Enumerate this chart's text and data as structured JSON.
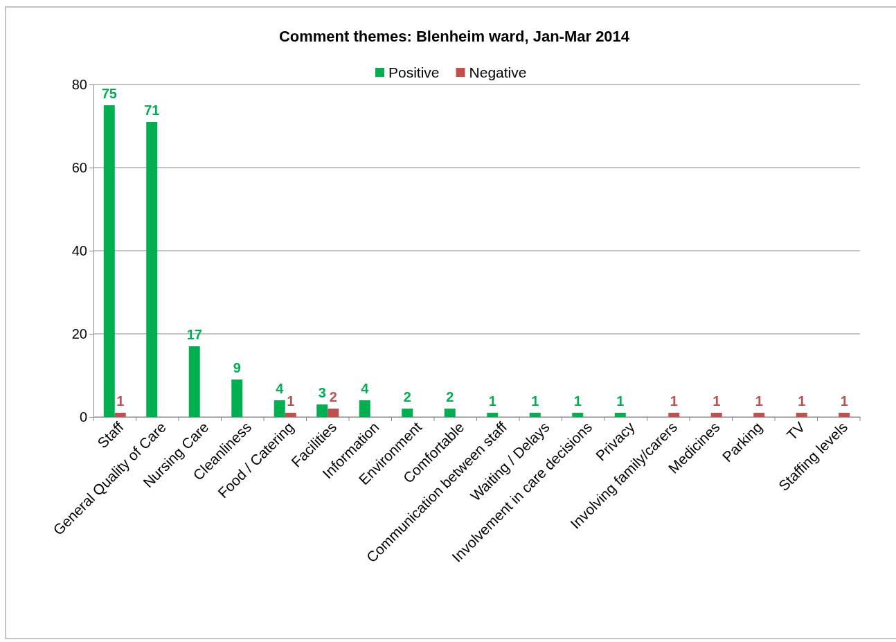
{
  "chart_data": {
    "type": "bar",
    "title": "Comment themes: Blenheim ward, Jan-Mar 2014",
    "categories": [
      "Staff",
      "General Quality of Care",
      "Nursing Care",
      "Cleanliness",
      "Food / Catering",
      "Facilities",
      "Information",
      "Environment",
      "Comfortable",
      "Communication between staff",
      "Waiting / Delays",
      "Involvement in care decisions",
      "Privacy",
      "Involving family/carers",
      "Medicines",
      "Parking",
      "TV",
      "Staffing levels"
    ],
    "series": [
      {
        "name": "Positive",
        "color": "#00b050",
        "values": [
          75,
          71,
          17,
          9,
          4,
          3,
          4,
          2,
          2,
          1,
          1,
          1,
          1,
          null,
          null,
          null,
          null,
          null
        ],
        "value_labels": [
          "75",
          "71",
          "17",
          "9",
          "4",
          "3",
          "4",
          "2",
          "2",
          "1",
          "1",
          "1",
          "1",
          null,
          null,
          null,
          null,
          null
        ]
      },
      {
        "name": "Negative",
        "color": "#c0504d",
        "values": [
          1,
          null,
          null,
          null,
          1,
          2,
          null,
          null,
          null,
          null,
          null,
          null,
          null,
          1,
          1,
          1,
          1,
          1
        ],
        "value_labels": [
          "1",
          null,
          null,
          null,
          "1",
          "2",
          null,
          null,
          null,
          null,
          null,
          null,
          null,
          "1",
          "1",
          "1",
          "1",
          "1"
        ]
      }
    ],
    "ylim": [
      0,
      80
    ],
    "yticks": [
      0,
      20,
      40,
      60,
      80
    ],
    "grid": "y",
    "legend": "top"
  }
}
